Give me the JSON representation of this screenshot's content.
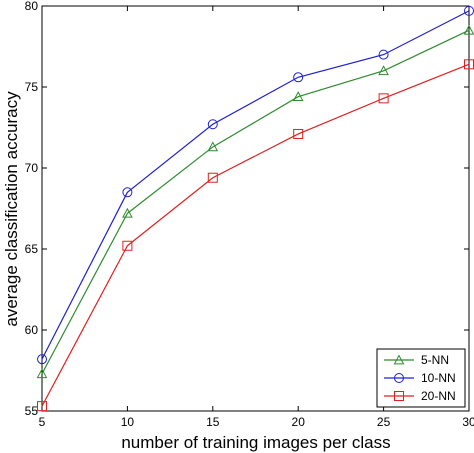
{
  "chart_data": {
    "type": "line",
    "title": "",
    "xlabel": "number of training images per class",
    "ylabel": "average classification accuracy",
    "x": [
      5,
      10,
      15,
      20,
      25,
      30
    ],
    "xlim": [
      5,
      30
    ],
    "ylim": [
      55,
      80
    ],
    "xticks": [
      5,
      10,
      15,
      20,
      25,
      30
    ],
    "yticks": [
      55,
      60,
      65,
      70,
      75,
      80
    ],
    "grid": false,
    "legend_position": "bottom-right",
    "series": [
      {
        "name": "5-NN",
        "color": "#2e8b2e",
        "marker": "triangle",
        "values": [
          57.3,
          67.2,
          71.3,
          74.4,
          76.0,
          78.5
        ]
      },
      {
        "name": "10-NN",
        "color": "#2020d0",
        "marker": "circle",
        "values": [
          58.2,
          68.5,
          72.7,
          75.6,
          77.0,
          79.7
        ]
      },
      {
        "name": "20-NN",
        "color": "#e02020",
        "marker": "square",
        "values": [
          55.3,
          65.2,
          69.4,
          72.1,
          74.3,
          76.4
        ]
      }
    ]
  }
}
